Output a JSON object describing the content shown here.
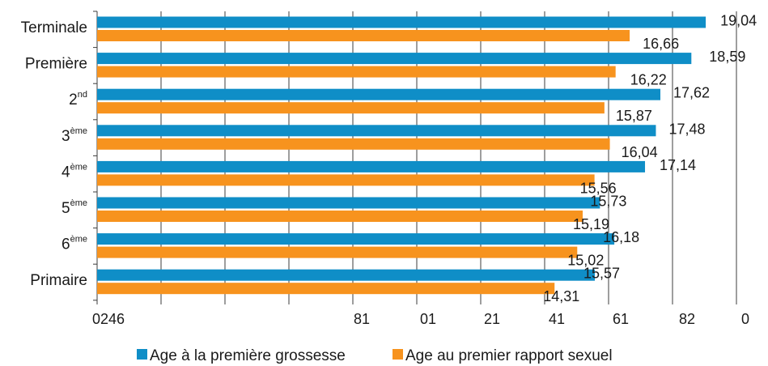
{
  "chart_data": {
    "type": "bar",
    "orientation": "horizontal",
    "categories": [
      {
        "base": "Terminale",
        "sup": ""
      },
      {
        "base": "Première",
        "sup": ""
      },
      {
        "base": "2",
        "sup": "nd"
      },
      {
        "base": "3",
        "sup": "ème"
      },
      {
        "base": "4",
        "sup": "ème"
      },
      {
        "base": "5",
        "sup": "ème"
      },
      {
        "base": "6",
        "sup": "ème"
      },
      {
        "base": "Primaire",
        "sup": ""
      }
    ],
    "series": [
      {
        "name": "Age à la première grossesse",
        "color": "#0f8ec7",
        "values": [
          19.04,
          18.59,
          17.62,
          17.48,
          17.14,
          15.73,
          16.18,
          15.57
        ],
        "labels": [
          "19,04",
          "18,59",
          "17,62",
          "17,48",
          "17,14",
          "15,73",
          "16,18",
          "15,57"
        ]
      },
      {
        "name": "Age au premier rapport sexuel",
        "color": "#f7931e",
        "values": [
          16.66,
          16.22,
          15.87,
          16.04,
          15.56,
          15.19,
          15.02,
          14.31
        ],
        "labels": [
          "16,66",
          "16,22",
          "15,87",
          "16,04",
          "15,56",
          "15,19",
          "15,02",
          "14,31"
        ]
      }
    ],
    "xlim": [
      0,
      20
    ],
    "x_tick_labels": [
      "0246",
      "81",
      "01",
      "21",
      "41",
      "61",
      "82",
      "0"
    ],
    "grid": "vertical",
    "legend": "bottom"
  }
}
